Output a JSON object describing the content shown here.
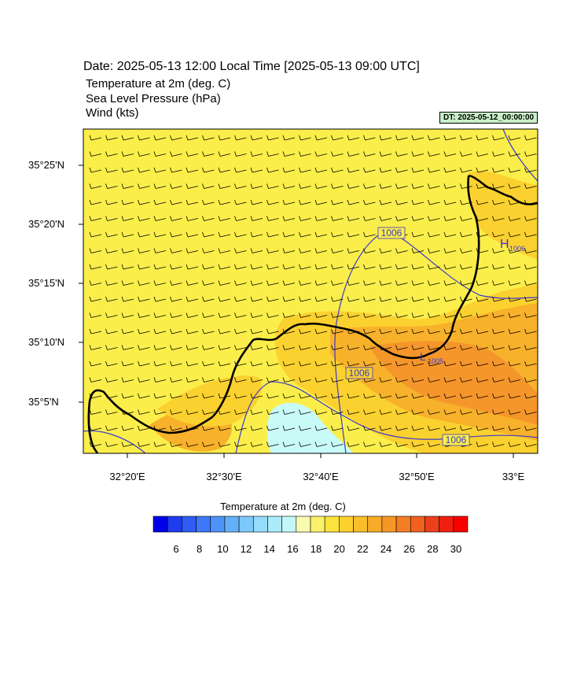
{
  "header": {
    "title": "Date: 2025-05-13  12:00 Local Time [2025-05-13  09:00 UTC]",
    "fields": [
      "Temperature at 2m   (deg. C)",
      "Sea Level Pressure   (hPa)",
      "Wind   (kts)"
    ],
    "dt_label": "DT: 2025-05-12_00:00:00"
  },
  "map": {
    "lat_labels": [
      "35°25'N",
      "35°20'N",
      "35°15'N",
      "35°10'N",
      "35°5'N"
    ],
    "lon_labels": [
      "32°20'E",
      "32°30'E",
      "32°40'E",
      "32°50'E",
      "33°E"
    ],
    "isobar_labels": [
      "1006",
      "1006",
      "1006"
    ],
    "pressure_centers": [
      {
        "letter": "H",
        "value": "1006"
      },
      {
        "letter": "L",
        "value": "1005"
      }
    ],
    "colors": {
      "base": "#fbee4a",
      "warm1": "#fbd12f",
      "warm2": "#f8b12a",
      "warm3": "#f5962a",
      "cool": "#c8faf8",
      "isobar": "#3a3acb",
      "coast": "#000000"
    }
  },
  "colorbar": {
    "title": "Temperature at 2m  (deg. C)",
    "labels": [
      "6",
      "8",
      "10",
      "12",
      "14",
      "16",
      "18",
      "20",
      "22",
      "24",
      "26",
      "28",
      "30"
    ],
    "colors": [
      "#0000e8",
      "#1e3cf0",
      "#2e5cf4",
      "#3c78f8",
      "#4c94f8",
      "#64b0f8",
      "#7cc8fa",
      "#94dcfa",
      "#acebfa",
      "#c4f8f8",
      "#fbfbb0",
      "#fbf06a",
      "#fbe23c",
      "#fbd12f",
      "#f9bf2a",
      "#f8ab28",
      "#f69626",
      "#f47d24",
      "#f06020",
      "#ec401c",
      "#f02010",
      "#f80000"
    ]
  }
}
